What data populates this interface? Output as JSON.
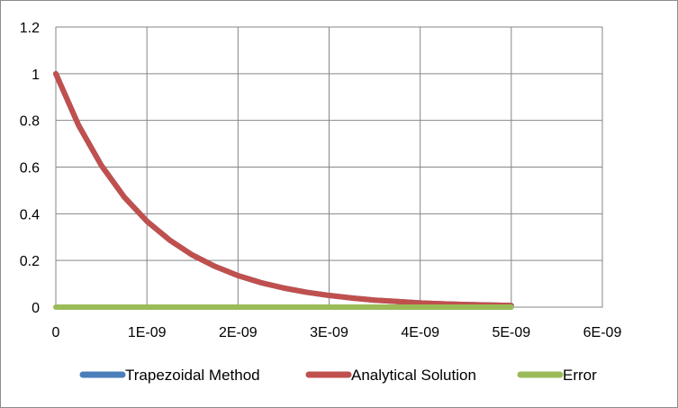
{
  "chart_data": {
    "type": "line",
    "title": "",
    "xlabel": "",
    "ylabel": "",
    "xlim": [
      0,
      6e-09
    ],
    "ylim": [
      0,
      1.2
    ],
    "x_ticks": [
      0,
      1e-09,
      2e-09,
      3e-09,
      4e-09,
      5e-09,
      6e-09
    ],
    "x_tick_labels": [
      "0",
      "1E-09",
      "2E-09",
      "3E-09",
      "4E-09",
      "5E-09",
      "6E-09"
    ],
    "y_ticks": [
      0,
      0.2,
      0.4,
      0.6,
      0.8,
      1,
      1.2
    ],
    "y_tick_labels": [
      "0",
      "0.2",
      "0.4",
      "0.6",
      "0.8",
      "1",
      "1.2"
    ],
    "grid": true,
    "legend_position": "bottom",
    "series": [
      {
        "name": "Trapezoidal Method",
        "color": "#4a7ebb",
        "x": [
          0,
          2.5e-10,
          5e-10,
          7.5e-10,
          1e-09,
          1.25e-09,
          1.5e-09,
          1.75e-09,
          2e-09,
          2.25e-09,
          2.5e-09,
          2.75e-09,
          3e-09,
          3.25e-09,
          3.5e-09,
          3.75e-09,
          4e-09,
          4.25e-09,
          4.5e-09,
          4.75e-09,
          5e-09
        ],
        "y": [
          1,
          0.779,
          0.607,
          0.472,
          0.368,
          0.287,
          0.223,
          0.174,
          0.135,
          0.105,
          0.082,
          0.064,
          0.05,
          0.039,
          0.03,
          0.024,
          0.018,
          0.014,
          0.011,
          0.009,
          0.007
        ]
      },
      {
        "name": "Analytical Solution",
        "color": "#c0504d",
        "x": [
          0,
          2.5e-10,
          5e-10,
          7.5e-10,
          1e-09,
          1.25e-09,
          1.5e-09,
          1.75e-09,
          2e-09,
          2.25e-09,
          2.5e-09,
          2.75e-09,
          3e-09,
          3.25e-09,
          3.5e-09,
          3.75e-09,
          4e-09,
          4.25e-09,
          4.5e-09,
          4.75e-09,
          5e-09
        ],
        "y": [
          1,
          0.779,
          0.607,
          0.472,
          0.368,
          0.287,
          0.223,
          0.174,
          0.135,
          0.105,
          0.082,
          0.064,
          0.05,
          0.039,
          0.03,
          0.024,
          0.018,
          0.014,
          0.011,
          0.009,
          0.007
        ]
      },
      {
        "name": "Error",
        "color": "#9bbb59",
        "x": [
          0,
          2.5e-10,
          5e-10,
          7.5e-10,
          1e-09,
          1.25e-09,
          1.5e-09,
          1.75e-09,
          2e-09,
          2.25e-09,
          2.5e-09,
          2.75e-09,
          3e-09,
          3.25e-09,
          3.5e-09,
          3.75e-09,
          4e-09,
          4.25e-09,
          4.5e-09,
          4.75e-09,
          5e-09
        ],
        "y": [
          0,
          0,
          0,
          0,
          0,
          0,
          0,
          0,
          0,
          0,
          0,
          0,
          0,
          0,
          0,
          0,
          0,
          0,
          0,
          0,
          0
        ]
      }
    ]
  }
}
